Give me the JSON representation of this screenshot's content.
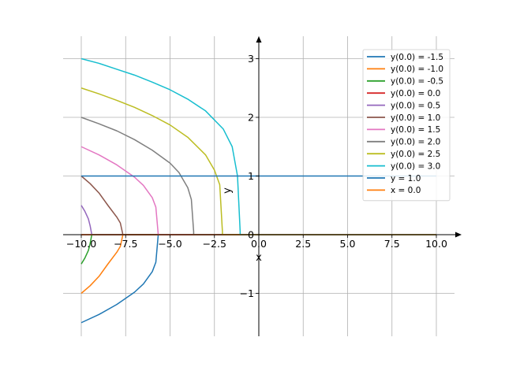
{
  "chart_data": {
    "type": "line",
    "title": "",
    "xlabel": "x",
    "ylabel": "y",
    "xlim": [
      -11.1,
      11.5
    ],
    "ylim": [
      -1.75,
      3.35
    ],
    "x_ticks": [
      -10.0,
      -7.5,
      -5.0,
      -2.5,
      0.0,
      2.5,
      5.0,
      7.5,
      10.0
    ],
    "x_tick_labels": [
      "−10.0",
      "−7.5",
      "−5.0",
      "−2.5",
      "0.0",
      "2.5",
      "5.0",
      "7.5",
      "10.0"
    ],
    "y_ticks": [
      -1,
      0,
      1,
      2,
      3
    ],
    "y_tick_labels": [
      "−1",
      "0",
      "1",
      "2",
      "3"
    ],
    "grid": true,
    "legend_position": "top-right",
    "series": [
      {
        "name": "y(0.0) = -1.5",
        "color": "#1f77b4",
        "x": [
          -10.0,
          -9.0,
          -8.0,
          -7.0,
          -6.5,
          -6.0,
          -5.8,
          -5.67,
          -5.67,
          10.0
        ],
        "y": [
          -1.5,
          -1.36,
          -1.19,
          -0.98,
          -0.84,
          -0.63,
          -0.47,
          -0.02,
          0.0,
          0.0
        ]
      },
      {
        "name": "y(0.0) = -1.0",
        "color": "#ff7f0e",
        "x": [
          -10.0,
          -9.5,
          -9.0,
          -8.5,
          -8.0,
          -7.8,
          -7.67,
          -7.67,
          10.0
        ],
        "y": [
          -1.0,
          -0.87,
          -0.71,
          -0.5,
          -0.3,
          -0.2,
          -0.02,
          0.0,
          0.0
        ]
      },
      {
        "name": "y(0.0) = -0.5",
        "color": "#2ca02c",
        "x": [
          -10.0,
          -9.8,
          -9.6,
          -9.5,
          -9.42,
          -9.42,
          10.0
        ],
        "y": [
          -0.5,
          -0.4,
          -0.27,
          -0.15,
          -0.02,
          0.0,
          0.0
        ]
      },
      {
        "name": "y(0.0) = 0.0",
        "color": "#d62728",
        "x": [
          -10.0,
          10.0
        ],
        "y": [
          0.0,
          0.0
        ]
      },
      {
        "name": "y(0.0) = 0.5",
        "color": "#9467bd",
        "x": [
          -10.0,
          -9.8,
          -9.6,
          -9.5,
          -9.42,
          -9.42,
          10.0
        ],
        "y": [
          0.5,
          0.4,
          0.27,
          0.15,
          0.02,
          0.0,
          0.0
        ]
      },
      {
        "name": "y(0.0) = 1.0",
        "color": "#8c564b",
        "x": [
          -10.0,
          -9.5,
          -9.0,
          -8.5,
          -8.0,
          -7.8,
          -7.67,
          -7.67,
          10.0
        ],
        "y": [
          1.0,
          0.87,
          0.71,
          0.5,
          0.3,
          0.2,
          0.02,
          0.0,
          0.0
        ]
      },
      {
        "name": "y(0.0) = 1.5",
        "color": "#e377c2",
        "x": [
          -10.0,
          -9.0,
          -8.0,
          -7.0,
          -6.5,
          -6.0,
          -5.8,
          -5.67,
          -5.67,
          10.0
        ],
        "y": [
          1.5,
          1.36,
          1.19,
          0.98,
          0.84,
          0.63,
          0.47,
          0.02,
          0.0,
          0.0
        ]
      },
      {
        "name": "y(0.0) = 2.0",
        "color": "#7f7f7f",
        "x": [
          -10.0,
          -9.0,
          -8.0,
          -7.0,
          -6.0,
          -5.0,
          -4.5,
          -4.0,
          -3.8,
          -3.67,
          -3.67,
          10.0
        ],
        "y": [
          2.0,
          1.89,
          1.77,
          1.62,
          1.44,
          1.22,
          1.06,
          0.8,
          0.6,
          0.05,
          0.0,
          0.0
        ]
      },
      {
        "name": "y(0.0) = 2.5",
        "color": "#bcbd22",
        "x": [
          -10.0,
          -9.0,
          -8.0,
          -7.0,
          -6.0,
          -5.0,
          -4.0,
          -3.0,
          -2.5,
          -2.2,
          -2.05,
          -2.05,
          10.0
        ],
        "y": [
          2.5,
          2.4,
          2.29,
          2.17,
          2.03,
          1.87,
          1.66,
          1.36,
          1.1,
          0.85,
          0.05,
          0.0,
          0.0
        ]
      },
      {
        "name": "y(0.0) = 3.0",
        "color": "#17becf",
        "x": [
          -10.0,
          -9.0,
          -8.0,
          -7.0,
          -6.0,
          -5.0,
          -4.0,
          -3.0,
          -2.0,
          -1.5,
          -1.2,
          -1.05,
          -1.05,
          10.0
        ],
        "y": [
          3.0,
          2.92,
          2.82,
          2.72,
          2.6,
          2.47,
          2.31,
          2.11,
          1.8,
          1.5,
          1.0,
          0.05,
          0.0,
          0.0
        ]
      },
      {
        "name": "y = 1.0",
        "color": "#1f77b4",
        "x": [
          -10.0,
          10.0
        ],
        "y": [
          1.0,
          1.0
        ]
      },
      {
        "name": "x = 0.0",
        "color": "#ff7f0e",
        "x": [
          -10.0,
          10.0
        ],
        "y": [
          0.0,
          0.0
        ]
      }
    ]
  }
}
